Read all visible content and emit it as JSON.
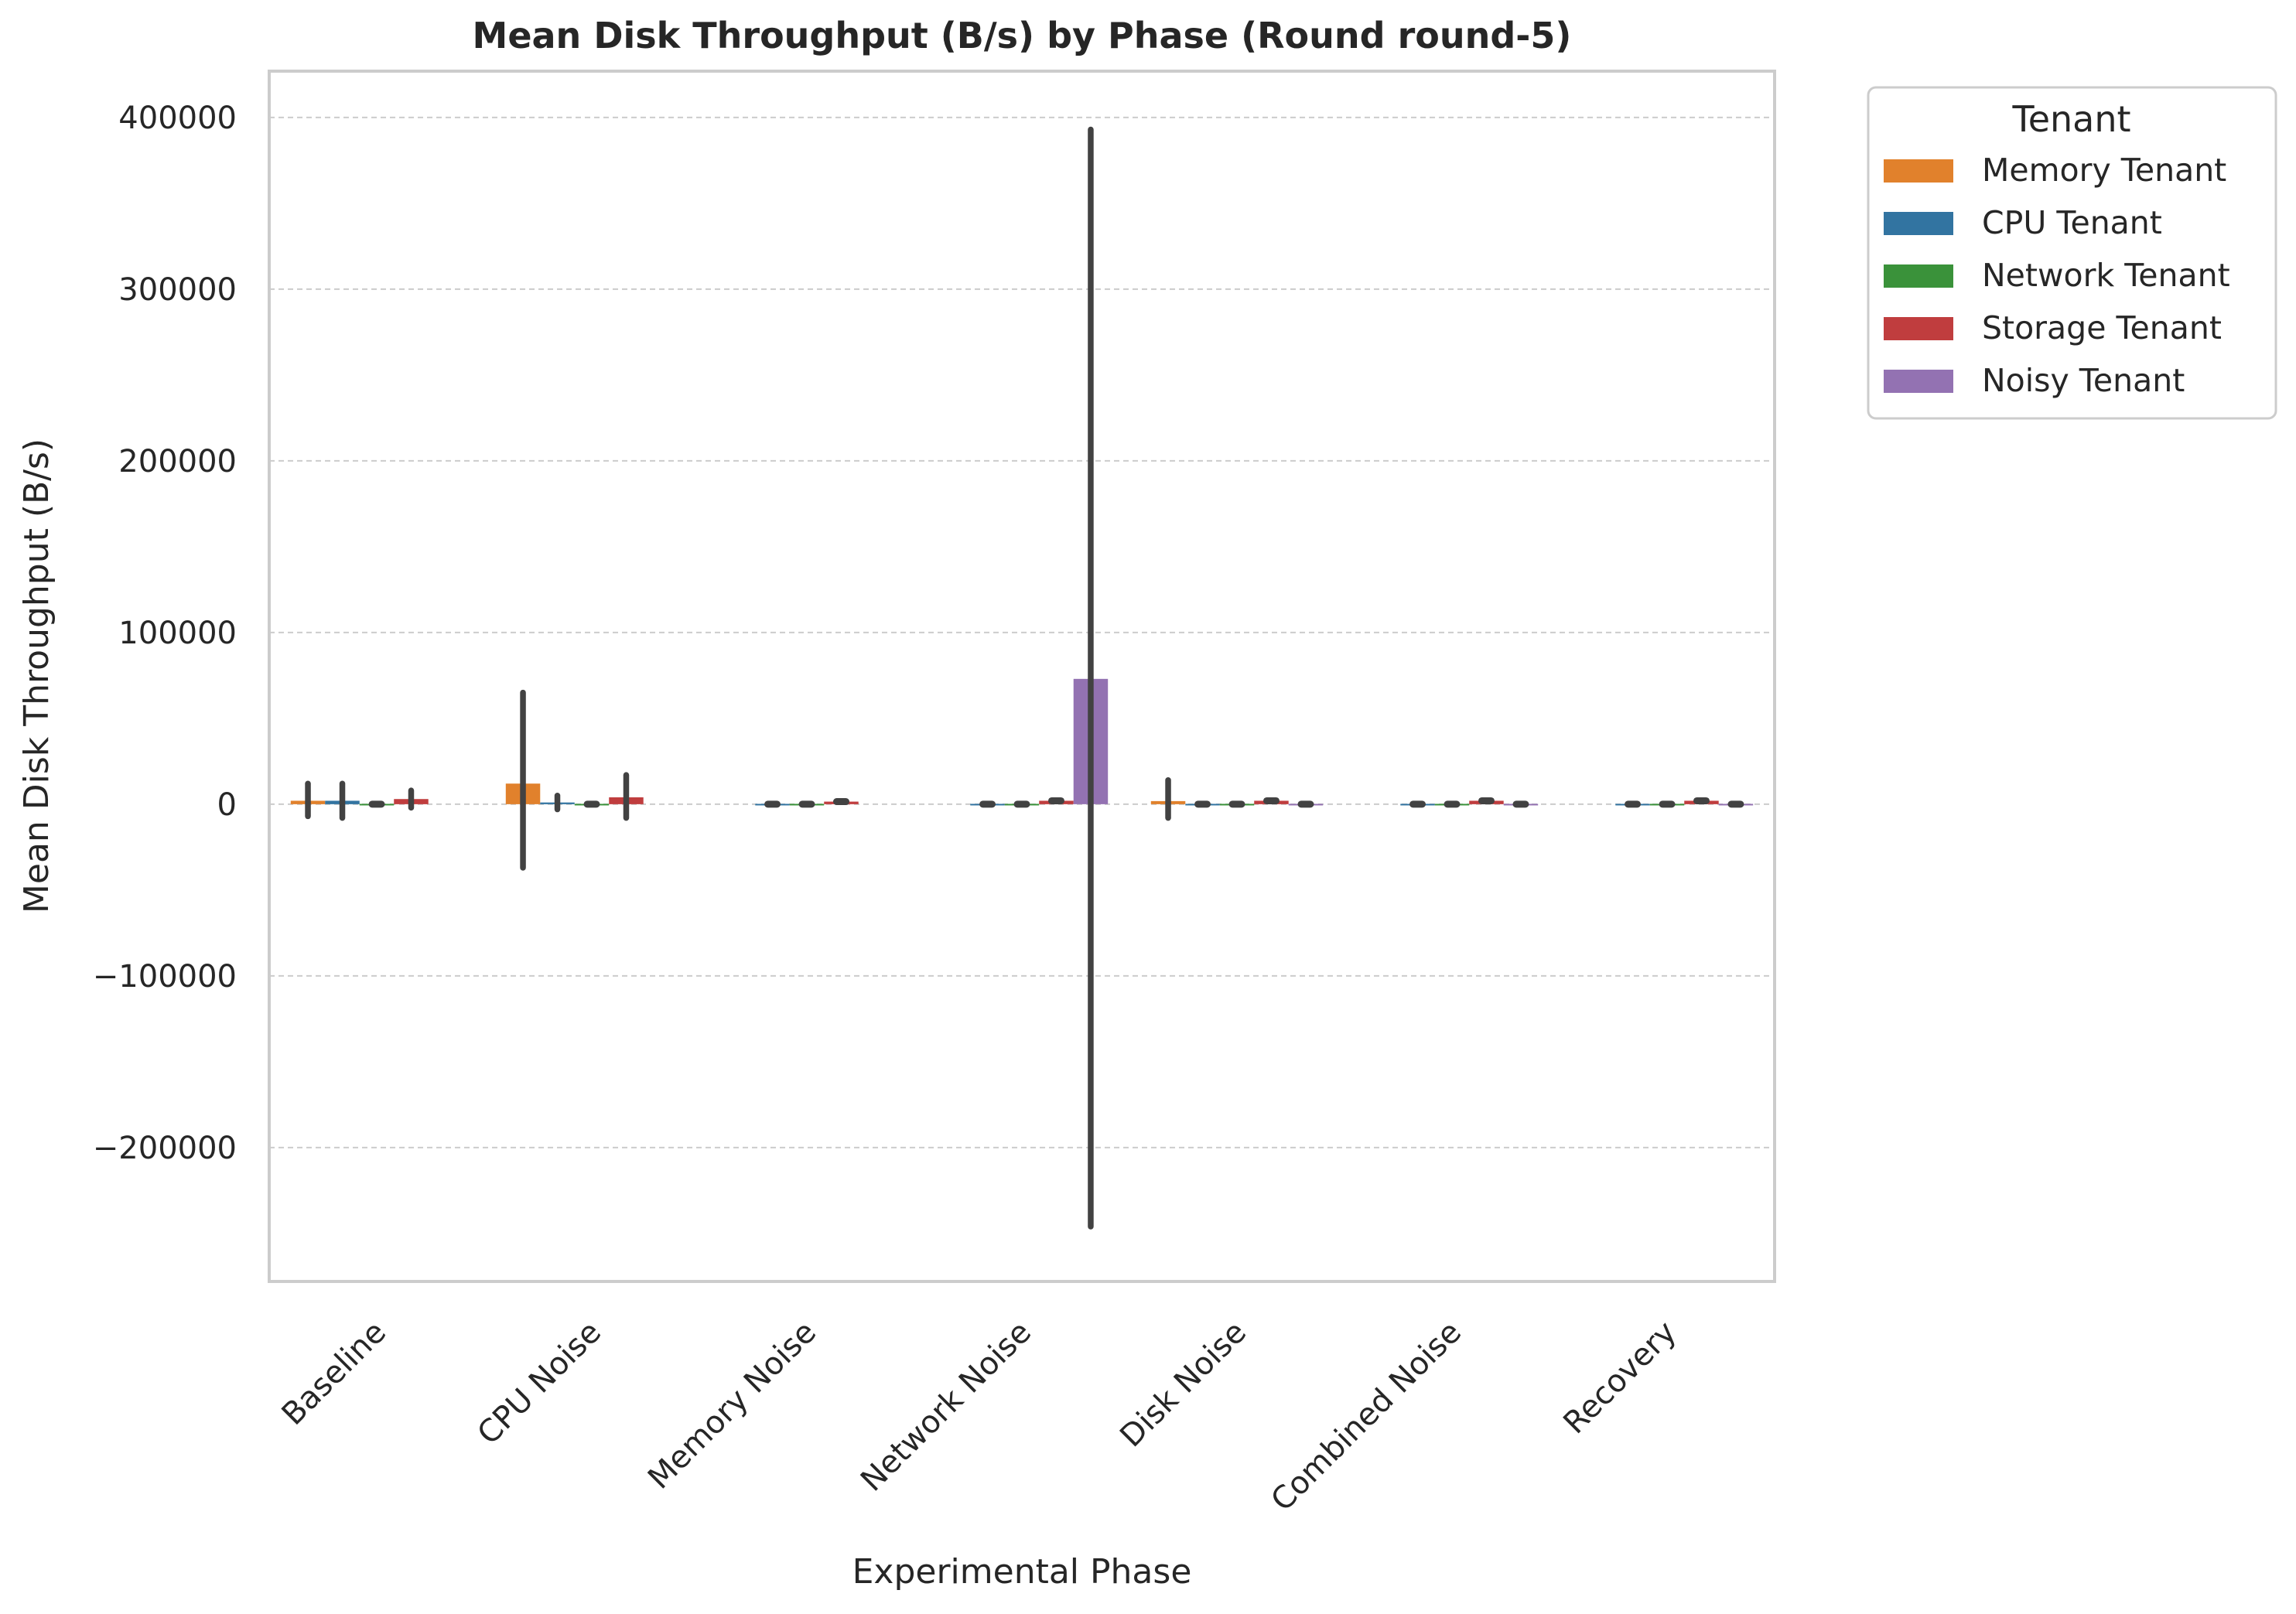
{
  "chart_data": {
    "type": "bar",
    "title": "Mean Disk Throughput (B/s) by Phase (Round round-5)",
    "xlabel": "Experimental Phase",
    "ylabel": "Mean Disk Throughput (B/s)",
    "ylim": [
      -278000,
      427000
    ],
    "yticks": [
      -200000,
      -100000,
      0,
      100000,
      200000,
      300000,
      400000
    ],
    "ytick_labels": [
      "−200000",
      "−100000",
      "0",
      "100000",
      "200000",
      "300000",
      "400000"
    ],
    "grid": "horizontal dashed",
    "legend": {
      "title": "Tenant",
      "placement": "outside top-right"
    },
    "categories": [
      "Baseline",
      "CPU Noise",
      "Memory Noise",
      "Network Noise",
      "Disk Noise",
      "Combined Noise",
      "Recovery"
    ],
    "series": [
      {
        "name": "Memory Tenant",
        "color": "#e1812c",
        "values": [
          2000,
          12000,
          null,
          null,
          1800,
          null,
          null
        ],
        "err_low": [
          -7000,
          -37000,
          null,
          null,
          -8000,
          null,
          null
        ],
        "err_high": [
          12000,
          65000,
          null,
          null,
          14000,
          null,
          null
        ]
      },
      {
        "name": "CPU Tenant",
        "color": "#3274a1",
        "values": [
          2000,
          1000,
          200,
          200,
          200,
          200,
          200
        ],
        "err_low": [
          -8000,
          -3000,
          -500,
          -500,
          -500,
          -500,
          -500
        ],
        "err_high": [
          12000,
          5000,
          500,
          500,
          500,
          500,
          500
        ]
      },
      {
        "name": "Network Tenant",
        "color": "#3a923a",
        "values": [
          200,
          200,
          200,
          200,
          200,
          200,
          200
        ],
        "err_low": [
          -500,
          -600,
          -500,
          -500,
          -500,
          -500,
          -500
        ],
        "err_high": [
          500,
          600,
          500,
          500,
          500,
          500,
          500
        ]
      },
      {
        "name": "Storage Tenant",
        "color": "#c03d3e",
        "values": [
          3000,
          4000,
          1500,
          2000,
          2000,
          2000,
          2000
        ],
        "err_low": [
          -2000,
          -8000,
          1000,
          1500,
          1500,
          1500,
          1500
        ],
        "err_high": [
          8000,
          17000,
          2000,
          2500,
          2500,
          2500,
          2500
        ]
      },
      {
        "name": "Noisy Tenant",
        "color": "#9372b2",
        "values": [
          null,
          null,
          null,
          73000,
          200,
          200,
          200
        ],
        "err_low": [
          null,
          null,
          null,
          -246000,
          -500,
          -500,
          -500
        ],
        "err_high": [
          null,
          null,
          null,
          393000,
          500,
          500,
          500
        ]
      }
    ]
  }
}
